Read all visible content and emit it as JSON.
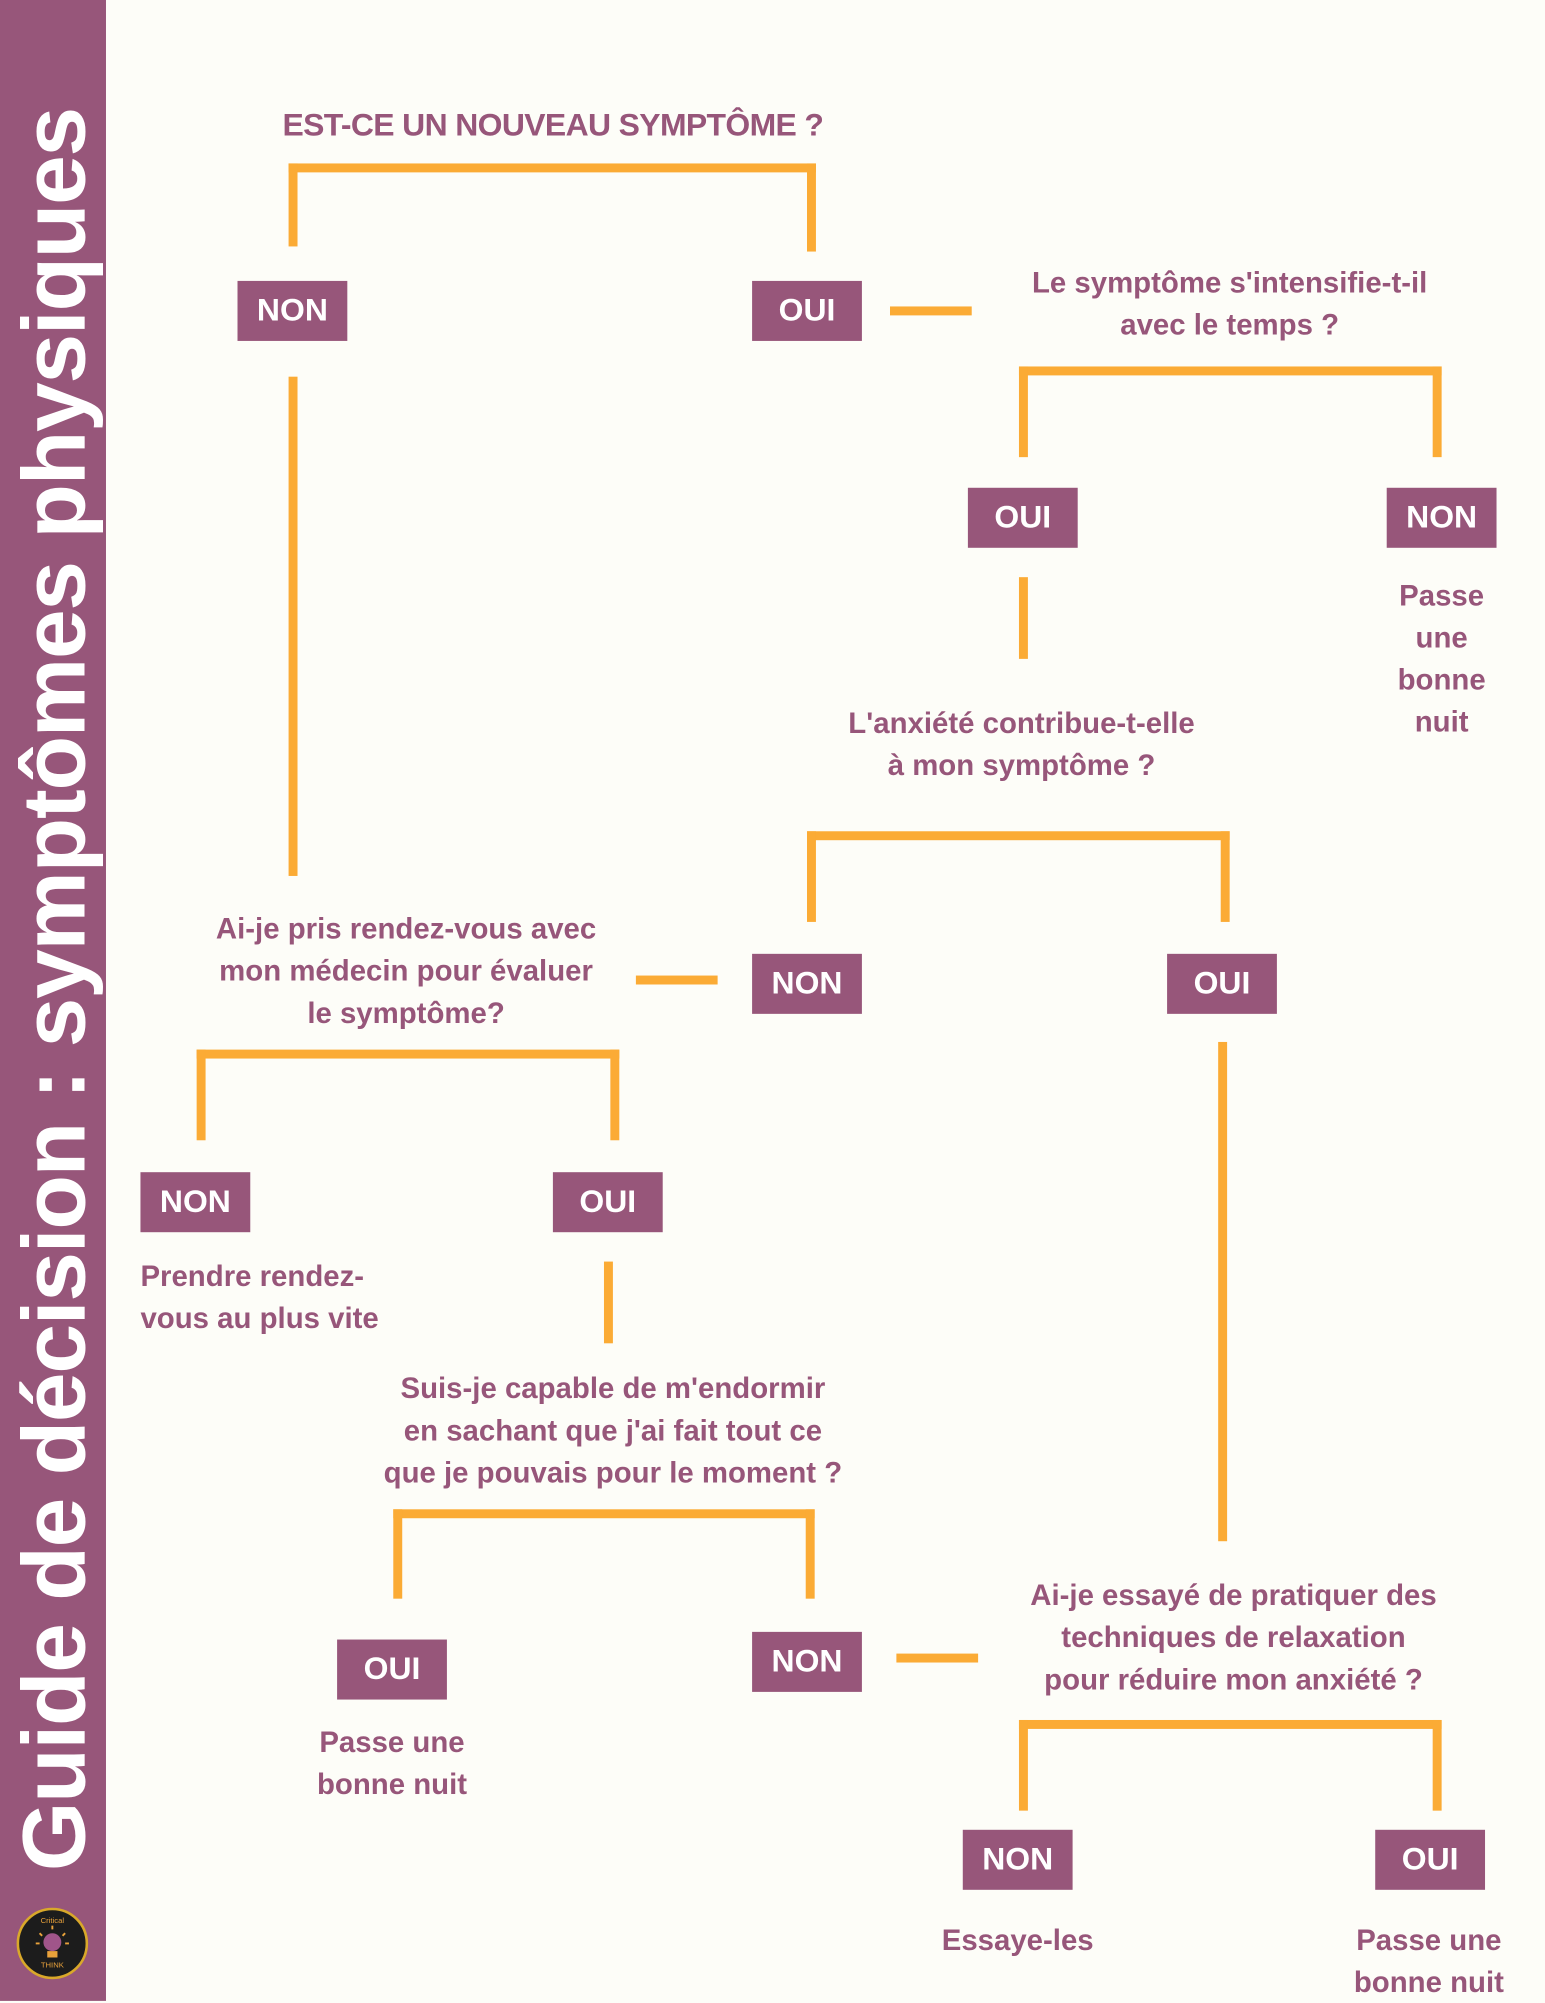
{
  "sidebar": {
    "title": "Guide de décision : symptômes physiques",
    "logo": {
      "top_text": "Critical",
      "bottom_text": "THINK",
      "icon": "lightbulb-brain-icon"
    }
  },
  "colors": {
    "accent": "#97567a",
    "connector": "#fbab35",
    "background": "#fdfdf8"
  },
  "q1": {
    "text": "EST-CE UN NOUVEAU SYMPTÔME ?",
    "no": "NON",
    "yes": "OUI"
  },
  "q2": {
    "line1": "Le symptôme s'intensifie-t-il",
    "line2": "avec le temps ?",
    "yes": "OUI",
    "no": "NON",
    "no_result": [
      "Passe",
      "une",
      "bonne",
      "nuit"
    ]
  },
  "q3": {
    "line1": "L'anxiété contribue-t-elle",
    "line2": "à mon symptôme ?",
    "no": "NON",
    "yes": "OUI"
  },
  "q4": {
    "line1": "Ai-je pris rendez-vous avec",
    "line2": "mon médecin pour évaluer",
    "line3": "le symptôme?",
    "no": "NON",
    "yes": "OUI",
    "no_result": [
      "Prendre rendez-",
      "vous au plus vite"
    ]
  },
  "q5": {
    "line1": "Suis-je capable de m'endormir",
    "line2": "en sachant que j'ai fait tout ce",
    "line3": "que je pouvais pour le moment ?",
    "yes": "OUI",
    "no": "NON",
    "yes_result": [
      "Passe une",
      "bonne nuit"
    ]
  },
  "q6": {
    "line1": "Ai-je essayé de pratiquer des",
    "line2": "techniques de relaxation",
    "line3": "pour réduire mon anxiété ?",
    "no": "NON",
    "yes": "OUI",
    "no_result": "Essaye-les",
    "yes_result": [
      "Passe une",
      "bonne nuit"
    ]
  }
}
